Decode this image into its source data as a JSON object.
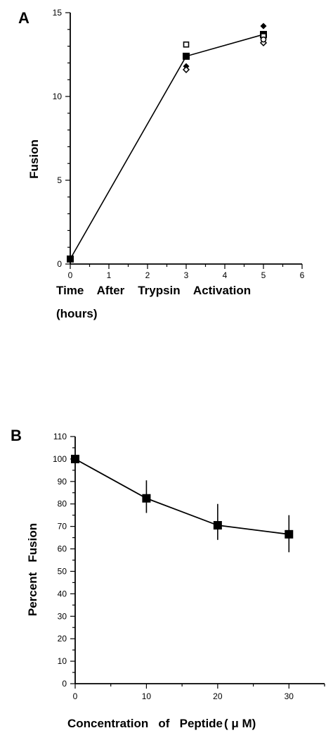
{
  "chart_data": [
    {
      "type": "scatter",
      "panel_label": "A",
      "title": "",
      "xlabel": "Time    After    Trypsin    Activation",
      "xlabel_line2": "(hours)",
      "ylabel": "Fusion",
      "xlim": [
        0,
        6
      ],
      "ylim": [
        0,
        15
      ],
      "x_ticks": [
        0,
        1,
        2,
        3,
        4,
        5,
        6
      ],
      "y_ticks": [
        0,
        5,
        10,
        15
      ],
      "grid": false,
      "legend": "none",
      "mean_line": {
        "x": [
          0,
          3,
          5
        ],
        "y": [
          0.3,
          12.4,
          13.7
        ]
      },
      "replicates": [
        {
          "marker": "filled-square",
          "points": [
            [
              0,
              0.3
            ],
            [
              3,
              12.4
            ],
            [
              5,
              13.7
            ]
          ]
        },
        {
          "marker": "open-square",
          "points": [
            [
              3,
              13.1
            ],
            [
              5,
              13.6
            ]
          ]
        },
        {
          "marker": "filled-diamond",
          "points": [
            [
              3,
              11.8
            ],
            [
              5,
              14.2
            ]
          ]
        },
        {
          "marker": "open-diamond",
          "points": [
            [
              3,
              11.6
            ],
            [
              5,
              13.2
            ]
          ]
        },
        {
          "marker": "open-circle",
          "points": [
            [
              5,
              13.4
            ]
          ]
        }
      ]
    },
    {
      "type": "line",
      "panel_label": "B",
      "title": "",
      "xlabel": "Concentration   of   Peptide",
      "xlabel_unit": "( μ M)",
      "ylabel": "Percent   Fusion",
      "xlim": [
        0,
        35
      ],
      "ylim": [
        0,
        110
      ],
      "x_ticks": [
        0,
        10,
        20,
        30
      ],
      "y_ticks": [
        0,
        10,
        20,
        30,
        40,
        50,
        60,
        70,
        80,
        90,
        100,
        110
      ],
      "grid": false,
      "legend": "none",
      "series": [
        {
          "x": [
            0,
            10,
            20,
            30
          ],
          "values": [
            100,
            82.5,
            70.5,
            66.5
          ],
          "error_low": [
            100,
            76,
            64,
            58.5
          ],
          "error_high": [
            100,
            90.5,
            80,
            75
          ]
        }
      ]
    }
  ]
}
